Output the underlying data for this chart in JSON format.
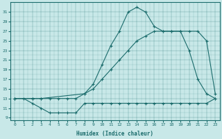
{
  "xlabel": "Humidex (Indice chaleur)",
  "background_color": "#c8e8e8",
  "line_color": "#1a6b6b",
  "xlim": [
    -0.5,
    23.5
  ],
  "ylim": [
    8.5,
    33
  ],
  "xticks": [
    0,
    1,
    2,
    3,
    4,
    5,
    6,
    7,
    8,
    9,
    10,
    11,
    12,
    13,
    14,
    15,
    16,
    17,
    18,
    19,
    20,
    21,
    22,
    23
  ],
  "yticks": [
    9,
    11,
    13,
    15,
    17,
    19,
    21,
    23,
    25,
    27,
    29,
    31
  ],
  "line1_x": [
    0,
    1,
    2,
    3,
    4,
    5,
    6,
    7,
    8,
    9,
    10,
    11,
    12,
    13,
    14,
    15,
    16,
    17,
    18,
    19,
    20,
    21,
    22,
    23
  ],
  "line1_y": [
    13,
    13,
    12,
    11,
    10,
    10,
    10,
    10,
    12,
    12,
    12,
    12,
    12,
    12,
    12,
    12,
    12,
    12,
    12,
    12,
    12,
    12,
    12,
    13
  ],
  "line2_x": [
    0,
    2,
    3,
    4,
    5,
    6,
    7,
    8,
    9,
    10,
    11,
    12,
    13,
    14,
    15,
    16,
    17,
    18,
    19,
    20,
    21,
    22,
    23
  ],
  "line2_y": [
    13,
    13,
    13,
    13,
    13,
    13,
    13,
    14,
    15,
    17,
    19,
    21,
    23,
    25,
    26,
    27,
    27,
    27,
    27,
    23,
    17,
    14,
    13
  ],
  "line3_x": [
    0,
    2,
    3,
    8,
    9,
    10,
    11,
    12,
    13,
    14,
    15,
    16,
    17,
    18,
    19,
    20,
    21,
    22,
    23
  ],
  "line3_y": [
    13,
    13,
    13,
    14,
    16,
    20,
    24,
    27,
    31,
    32,
    31,
    28,
    27,
    27,
    27,
    27,
    27,
    25,
    14
  ]
}
